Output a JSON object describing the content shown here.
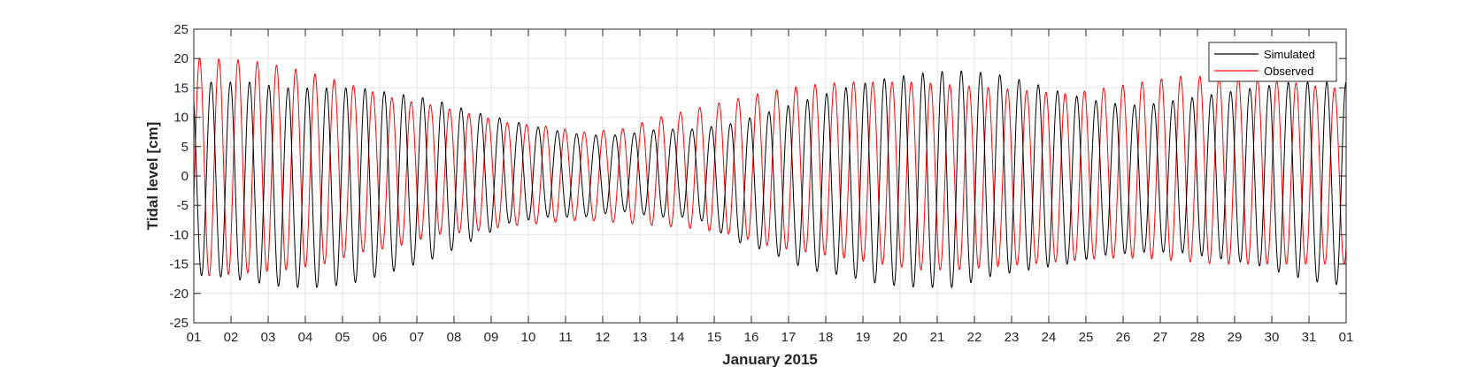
{
  "chart_data": {
    "type": "line",
    "xlabel": "January 2015",
    "ylabel": "Tidal level [cm]",
    "xlim": [
      "2015-01-01",
      "2015-02-01"
    ],
    "ylim": [
      -25,
      25
    ],
    "x_ticks": [
      "01",
      "02",
      "03",
      "04",
      "05",
      "06",
      "07",
      "08",
      "09",
      "10",
      "11",
      "12",
      "13",
      "14",
      "15",
      "16",
      "17",
      "18",
      "19",
      "20",
      "21",
      "22",
      "23",
      "24",
      "25",
      "26",
      "27",
      "28",
      "29",
      "30",
      "31",
      "01"
    ],
    "y_ticks": [
      -25,
      -20,
      -15,
      -10,
      -5,
      0,
      5,
      10,
      15,
      20,
      25
    ],
    "grid": true,
    "legend_position": "top-right",
    "colors": {
      "simulated": "#000000",
      "observed": "#ff0000",
      "grid": "#e3e3e3",
      "axis": "#262626"
    },
    "semidiurnal_period_hours": 12.42,
    "series": [
      {
        "name": "Simulated",
        "color": "#000000",
        "daily_high_low": [
          {
            "date": "2015-01-01",
            "high": 16,
            "low": -17
          },
          {
            "date": "2015-01-02",
            "high": 16,
            "low": -18
          },
          {
            "date": "2015-01-03",
            "high": 15,
            "low": -19
          },
          {
            "date": "2015-01-04",
            "high": 15,
            "low": -19
          },
          {
            "date": "2015-01-05",
            "high": 15,
            "low": -18
          },
          {
            "date": "2015-01-06",
            "high": 14,
            "low": -16
          },
          {
            "date": "2015-01-07",
            "high": 13,
            "low": -14
          },
          {
            "date": "2015-01-08",
            "high": 11,
            "low": -11
          },
          {
            "date": "2015-01-09",
            "high": 9.5,
            "low": -8
          },
          {
            "date": "2015-01-10",
            "high": 8,
            "low": -7
          },
          {
            "date": "2015-01-11",
            "high": 7,
            "low": -7
          },
          {
            "date": "2015-01-12",
            "high": 7,
            "low": -6
          },
          {
            "date": "2015-01-13",
            "high": 8,
            "low": -7
          },
          {
            "date": "2015-01-14",
            "high": 8,
            "low": -7
          },
          {
            "date": "2015-01-15",
            "high": 9,
            "low": -11
          },
          {
            "date": "2015-01-16",
            "high": 11,
            "low": -13
          },
          {
            "date": "2015-01-17",
            "high": 13,
            "low": -16
          },
          {
            "date": "2015-01-18",
            "high": 15,
            "low": -17
          },
          {
            "date": "2015-01-19",
            "high": 16.5,
            "low": -18.5
          },
          {
            "date": "2015-01-20",
            "high": 17.5,
            "low": -19
          },
          {
            "date": "2015-01-21",
            "high": 18,
            "low": -19
          },
          {
            "date": "2015-01-22",
            "high": 17.5,
            "low": -17
          },
          {
            "date": "2015-01-23",
            "high": 16,
            "low": -16
          },
          {
            "date": "2015-01-24",
            "high": 14,
            "low": -15
          },
          {
            "date": "2015-01-25",
            "high": 12.5,
            "low": -13.5
          },
          {
            "date": "2015-01-26",
            "high": 12,
            "low": -13
          },
          {
            "date": "2015-01-27",
            "high": 13,
            "low": -13
          },
          {
            "date": "2015-01-28",
            "high": 14,
            "low": -14
          },
          {
            "date": "2015-01-29",
            "high": 15,
            "low": -15
          },
          {
            "date": "2015-01-30",
            "high": 16,
            "low": -17
          },
          {
            "date": "2015-01-31",
            "high": 16,
            "low": -18.5
          }
        ]
      },
      {
        "name": "Observed",
        "color": "#ff0000",
        "daily_high_low": [
          {
            "date": "2015-01-01",
            "high": 20,
            "low": -17
          },
          {
            "date": "2015-01-02",
            "high": 19.7,
            "low": -16.5
          },
          {
            "date": "2015-01-03",
            "high": 18.6,
            "low": -16
          },
          {
            "date": "2015-01-04",
            "high": 17,
            "low": -15
          },
          {
            "date": "2015-01-05",
            "high": 15,
            "low": -13
          },
          {
            "date": "2015-01-06",
            "high": 13,
            "low": -12
          },
          {
            "date": "2015-01-07",
            "high": 12,
            "low": -10
          },
          {
            "date": "2015-01-08",
            "high": 10.5,
            "low": -9.5
          },
          {
            "date": "2015-01-09",
            "high": 9,
            "low": -8.5
          },
          {
            "date": "2015-01-10",
            "high": 8.5,
            "low": -8
          },
          {
            "date": "2015-01-11",
            "high": 7.5,
            "low": -7.5
          },
          {
            "date": "2015-01-12",
            "high": 8,
            "low": -8
          },
          {
            "date": "2015-01-13",
            "high": 10,
            "low": -8.5
          },
          {
            "date": "2015-01-14",
            "high": 11.5,
            "low": -9
          },
          {
            "date": "2015-01-15",
            "high": 13,
            "low": -10
          },
          {
            "date": "2015-01-16",
            "high": 14.5,
            "low": -12
          },
          {
            "date": "2015-01-17",
            "high": 15.5,
            "low": -13
          },
          {
            "date": "2015-01-18",
            "high": 16,
            "low": -14
          },
          {
            "date": "2015-01-19",
            "high": 16,
            "low": -15
          },
          {
            "date": "2015-01-20",
            "high": 16,
            "low": -16
          },
          {
            "date": "2015-01-21",
            "high": 15.5,
            "low": -16
          },
          {
            "date": "2015-01-22",
            "high": 15,
            "low": -15.5
          },
          {
            "date": "2015-01-23",
            "high": 14.5,
            "low": -15
          },
          {
            "date": "2015-01-24",
            "high": 14,
            "low": -14.5
          },
          {
            "date": "2015-01-25",
            "high": 15,
            "low": -14
          },
          {
            "date": "2015-01-26",
            "high": 16,
            "low": -14
          },
          {
            "date": "2015-01-27",
            "high": 17,
            "low": -14.5
          },
          {
            "date": "2015-01-28",
            "high": 17,
            "low": -15
          },
          {
            "date": "2015-01-29",
            "high": 16.5,
            "low": -15
          },
          {
            "date": "2015-01-30",
            "high": 16,
            "low": -15
          },
          {
            "date": "2015-01-31",
            "high": 15,
            "low": -15
          }
        ]
      }
    ]
  }
}
